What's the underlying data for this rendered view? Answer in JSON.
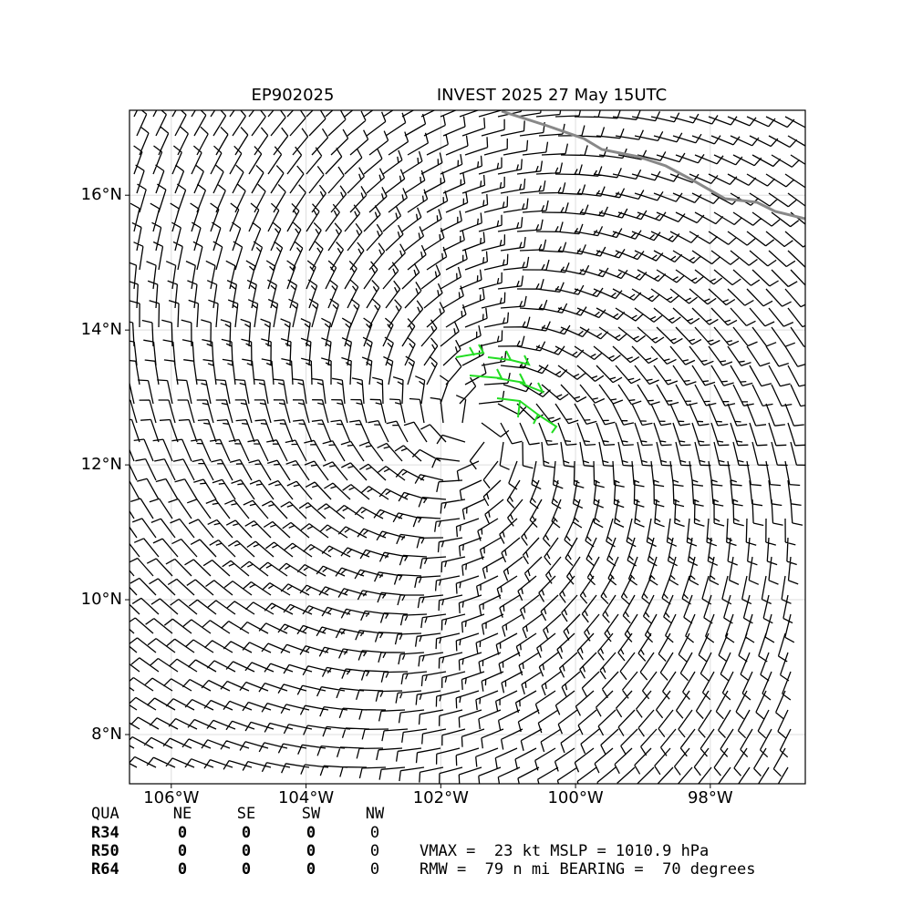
{
  "header": {
    "storm_id": "EP902025",
    "storm_info": "INVEST 2025 27 May 15UTC"
  },
  "map": {
    "xlim": [
      -106.62,
      -96.59
    ],
    "ylim": [
      7.27,
      17.26
    ],
    "xticks": [
      {
        "value": -106,
        "label": "106°W"
      },
      {
        "value": -104,
        "label": "104°W"
      },
      {
        "value": -102,
        "label": "102°W"
      },
      {
        "value": -100,
        "label": "100°W"
      },
      {
        "value": -98,
        "label": "98°W"
      }
    ],
    "yticks": [
      {
        "value": 8,
        "label": "8°N"
      },
      {
        "value": 10,
        "label": "10°N"
      },
      {
        "value": 12,
        "label": "12°N"
      },
      {
        "value": 14,
        "label": "14°N"
      },
      {
        "value": 16,
        "label": "16°N"
      }
    ]
  },
  "table": {
    "header": [
      "QUA",
      "NE",
      "SE",
      "SW",
      "NW"
    ],
    "rows": [
      [
        "R34",
        "0",
        "0",
        "0",
        "0"
      ],
      [
        "R50",
        "0",
        "0",
        "0",
        "0"
      ],
      [
        "R64",
        "0",
        "0",
        "0",
        "0"
      ]
    ]
  },
  "summary": [
    "VMAX =  23 kt MSLP = 1010.9 hPa",
    "RMW =  79 n mi BEARING =  70 degrees"
  ]
}
